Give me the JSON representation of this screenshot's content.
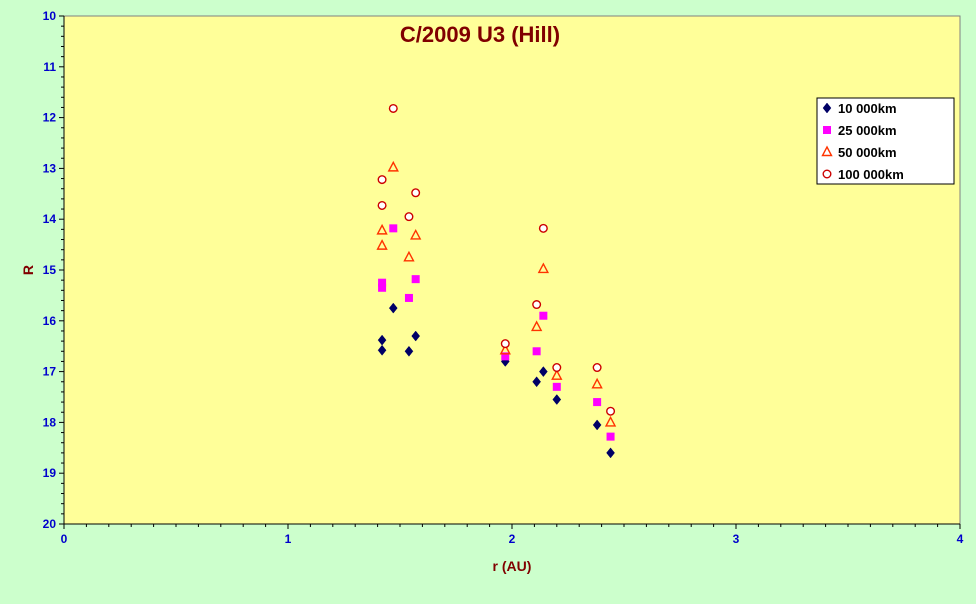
{
  "chart_data": {
    "type": "scatter",
    "title": "C/2009 U3 (Hill)",
    "xlabel": "r (AU)",
    "ylabel": "R",
    "xlim": [
      0,
      4
    ],
    "ylim": [
      10,
      20
    ],
    "y_inverted": true,
    "x_ticks": [
      "0",
      "1",
      "2",
      "3",
      "4"
    ],
    "y_ticks": [
      "10",
      "11",
      "12",
      "13",
      "14",
      "15",
      "16",
      "17",
      "18",
      "19",
      "20"
    ],
    "grid": false,
    "legend_position": "top-right",
    "colors": {
      "figure_background": "#ccffcc",
      "plot_background": "#ffff99",
      "title": "#800000",
      "axis_label": "#800000",
      "tick_label": "#0000cc",
      "legend_text": "#000000"
    },
    "series": [
      {
        "name": "10 000km",
        "marker": "diamond",
        "color": "#000066",
        "points": [
          [
            1.42,
            16.38
          ],
          [
            1.42,
            16.58
          ],
          [
            1.47,
            15.75
          ],
          [
            1.54,
            16.6
          ],
          [
            1.57,
            16.3
          ],
          [
            1.97,
            16.8
          ],
          [
            2.11,
            17.2
          ],
          [
            2.14,
            17.0
          ],
          [
            2.2,
            17.55
          ],
          [
            2.38,
            18.05
          ],
          [
            2.44,
            18.6
          ]
        ]
      },
      {
        "name": "25 000km",
        "marker": "square",
        "color": "#ff00ff",
        "points": [
          [
            1.42,
            15.25
          ],
          [
            1.42,
            15.35
          ],
          [
            1.47,
            14.18
          ],
          [
            1.54,
            15.55
          ],
          [
            1.57,
            15.18
          ],
          [
            1.97,
            16.7
          ],
          [
            2.11,
            16.6
          ],
          [
            2.14,
            15.9
          ],
          [
            2.2,
            17.3
          ],
          [
            2.38,
            17.6
          ],
          [
            2.44,
            18.28
          ]
        ]
      },
      {
        "name": "50 000km",
        "marker": "triangle",
        "color": "#ff3300",
        "points": [
          [
            1.42,
            14.22
          ],
          [
            1.42,
            14.52
          ],
          [
            1.47,
            12.98
          ],
          [
            1.54,
            14.75
          ],
          [
            1.57,
            14.32
          ],
          [
            1.97,
            16.58
          ],
          [
            2.11,
            16.12
          ],
          [
            2.14,
            14.98
          ],
          [
            2.2,
            17.08
          ],
          [
            2.38,
            17.25
          ],
          [
            2.44,
            18.0
          ]
        ]
      },
      {
        "name": "100 000km",
        "marker": "circle",
        "color": "#cc0000",
        "points": [
          [
            1.42,
            13.22
          ],
          [
            1.42,
            13.73
          ],
          [
            1.47,
            11.82
          ],
          [
            1.54,
            13.95
          ],
          [
            1.57,
            13.48
          ],
          [
            1.97,
            16.45
          ],
          [
            2.11,
            15.68
          ],
          [
            2.14,
            14.18
          ],
          [
            2.2,
            16.92
          ],
          [
            2.38,
            16.92
          ],
          [
            2.44,
            17.78
          ]
        ]
      }
    ]
  }
}
